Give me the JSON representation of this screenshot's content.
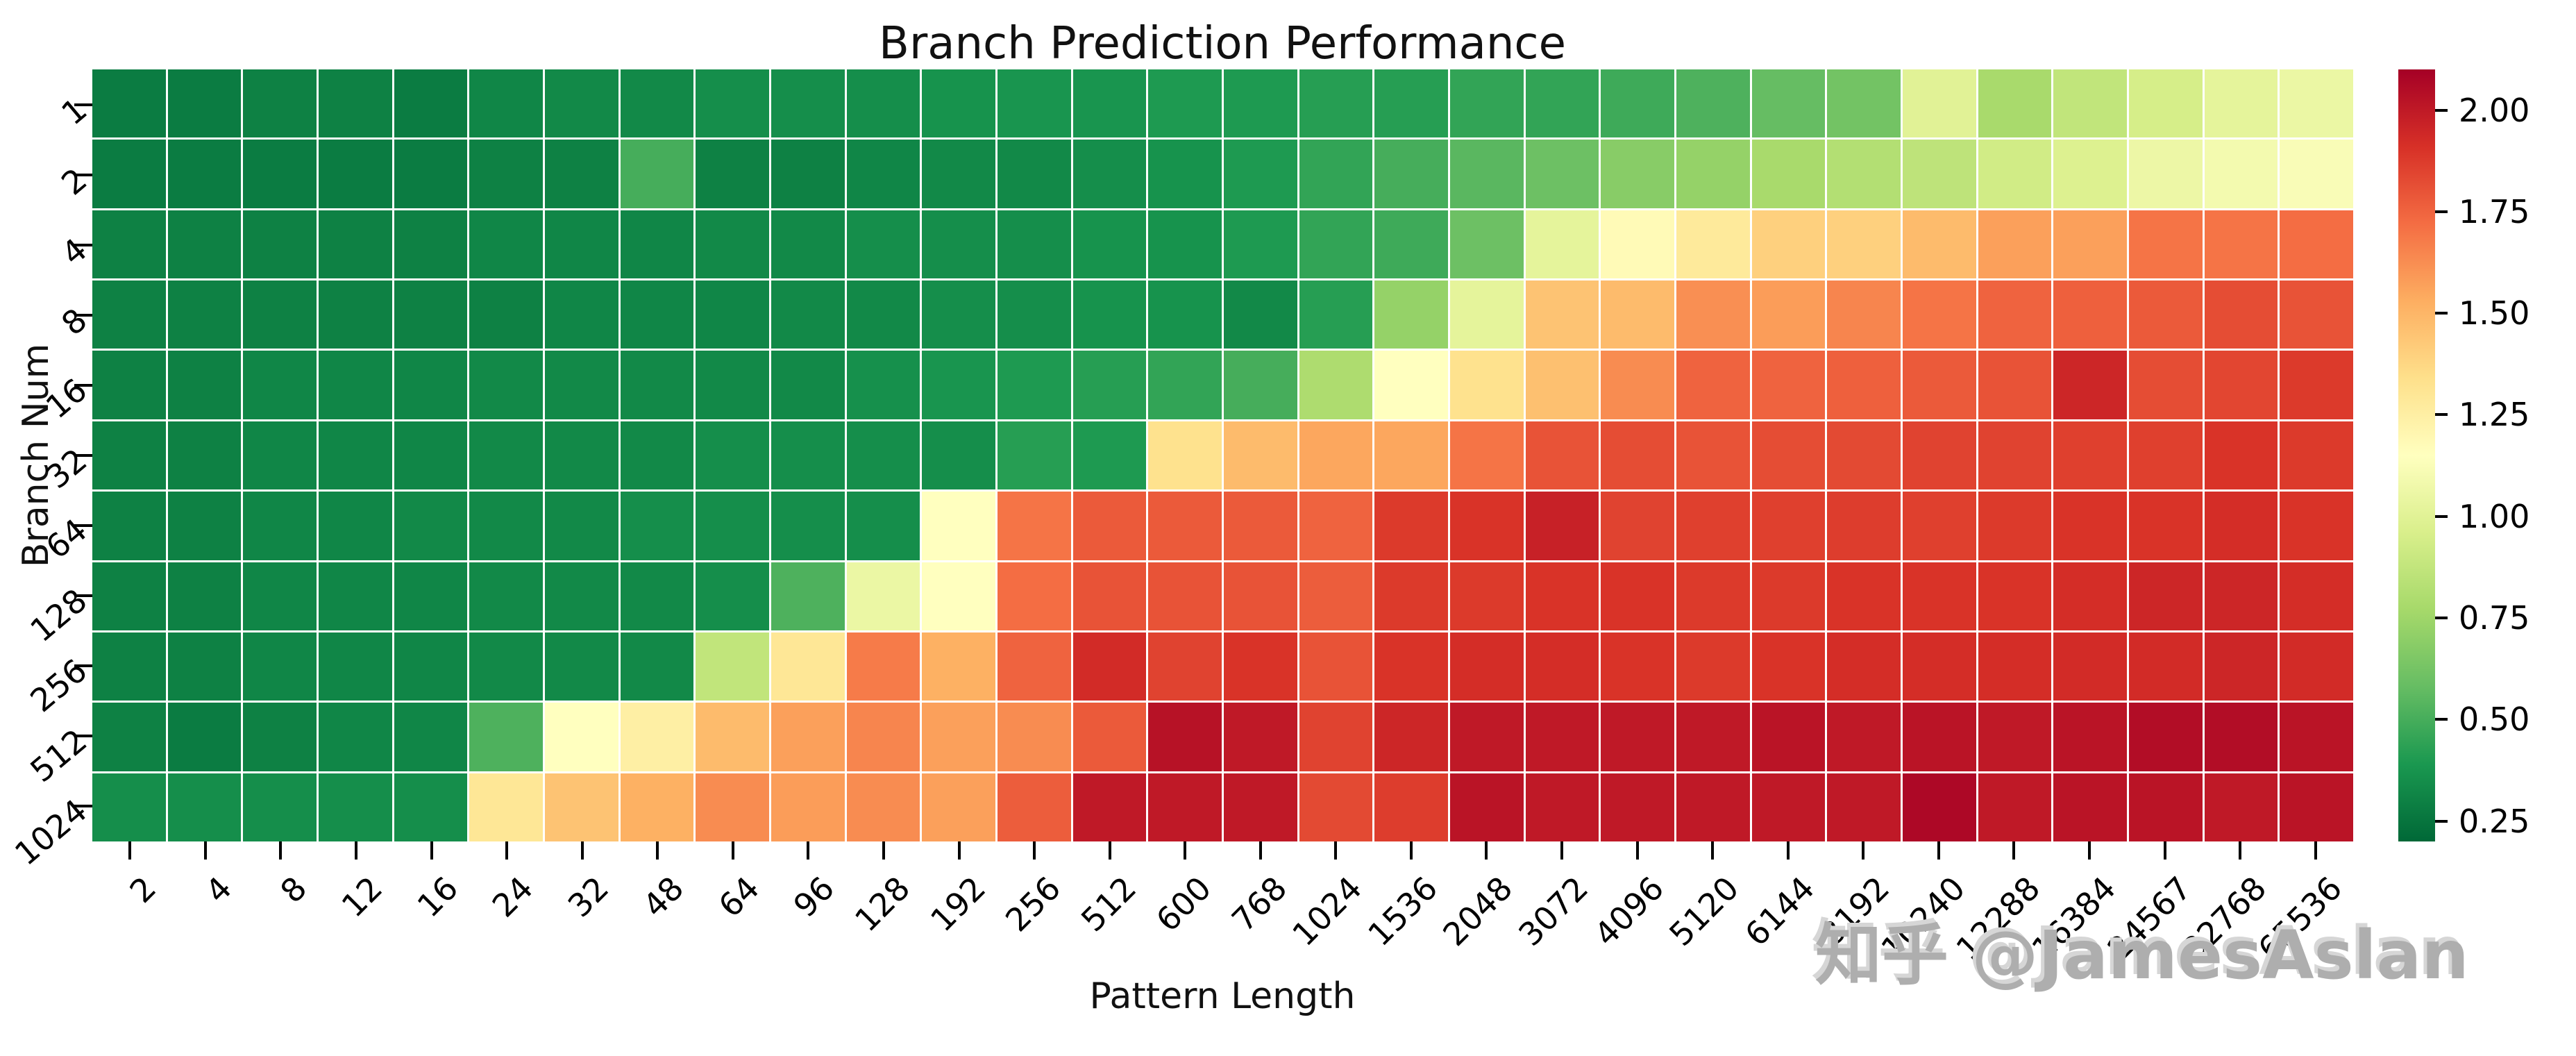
{
  "title": "Branch Prediction Performance",
  "watermark_text": "知乎 @JamesAslan",
  "colors": {
    "background": "#ffffff",
    "text": "#000000",
    "gridline": "#ffffff",
    "watermark": "#aeaeae",
    "cmap_stops": [
      "#006837",
      "#1a9850",
      "#66bd63",
      "#a6d96a",
      "#d9ef8b",
      "#ffffbf",
      "#fee08b",
      "#fdae61",
      "#f46d43",
      "#d73027",
      "#a50026"
    ]
  },
  "chart_data": {
    "type": "heatmap",
    "title": "Branch Prediction Performance",
    "xlabel": "Pattern Length",
    "ylabel": "Branch Num",
    "colormap": "RdYlGn_r",
    "vmin": 0.2,
    "vmax": 2.1,
    "grid": "white cell borders",
    "legend_position": "right-colorbar",
    "x_labels": [
      "2",
      "4",
      "8",
      "12",
      "16",
      "24",
      "32",
      "48",
      "64",
      "96",
      "128",
      "192",
      "256",
      "512",
      "600",
      "768",
      "1024",
      "1536",
      "2048",
      "3072",
      "4096",
      "5120",
      "6144",
      "8192",
      "10240",
      "12288",
      "16384",
      "24567",
      "32768",
      "65536"
    ],
    "y_labels": [
      "1",
      "2",
      "4",
      "8",
      "16",
      "32",
      "64",
      "128",
      "256",
      "512",
      "1024"
    ],
    "colorbar_ticks": [
      0.25,
      0.5,
      0.75,
      1.0,
      1.25,
      1.5,
      1.75,
      2.0
    ],
    "colorbar_tick_labels": [
      "0.25",
      "0.50",
      "0.75",
      "1.00",
      "1.25",
      "1.50",
      "1.75",
      "2.00"
    ],
    "values": [
      [
        0.28,
        0.28,
        0.3,
        0.3,
        0.28,
        0.32,
        0.33,
        0.33,
        0.35,
        0.35,
        0.35,
        0.37,
        0.38,
        0.38,
        0.4,
        0.4,
        0.42,
        0.42,
        0.45,
        0.45,
        0.48,
        0.52,
        0.58,
        0.62,
        1.0,
        0.78,
        0.87,
        0.95,
        1.02,
        1.05
      ],
      [
        0.28,
        0.28,
        0.28,
        0.28,
        0.28,
        0.3,
        0.3,
        0.5,
        0.3,
        0.3,
        0.32,
        0.33,
        0.33,
        0.35,
        0.37,
        0.4,
        0.45,
        0.5,
        0.55,
        0.6,
        0.68,
        0.72,
        0.78,
        0.82,
        0.86,
        0.93,
        0.98,
        1.06,
        1.09,
        1.12
      ],
      [
        0.3,
        0.3,
        0.3,
        0.3,
        0.3,
        0.32,
        0.32,
        0.32,
        0.33,
        0.33,
        0.35,
        0.35,
        0.35,
        0.37,
        0.37,
        0.4,
        0.45,
        0.48,
        0.6,
        1.02,
        1.18,
        1.28,
        1.4,
        1.4,
        1.48,
        1.57,
        1.57,
        1.7,
        1.7,
        1.72
      ],
      [
        0.3,
        0.3,
        0.3,
        0.3,
        0.3,
        0.3,
        0.32,
        0.32,
        0.32,
        0.33,
        0.33,
        0.35,
        0.35,
        0.37,
        0.37,
        0.33,
        0.42,
        0.72,
        1.02,
        1.45,
        1.48,
        1.62,
        1.58,
        1.65,
        1.7,
        1.75,
        1.76,
        1.78,
        1.82,
        1.8
      ],
      [
        0.3,
        0.3,
        0.32,
        0.32,
        0.32,
        0.33,
        0.33,
        0.33,
        0.33,
        0.33,
        0.36,
        0.38,
        0.4,
        0.42,
        0.45,
        0.5,
        0.8,
        1.15,
        1.33,
        1.46,
        1.63,
        1.75,
        1.75,
        1.76,
        1.78,
        1.8,
        1.95,
        1.82,
        1.84,
        1.88
      ],
      [
        0.3,
        0.3,
        0.32,
        0.32,
        0.32,
        0.33,
        0.33,
        0.33,
        0.35,
        0.35,
        0.35,
        0.35,
        0.42,
        0.4,
        1.33,
        1.48,
        1.55,
        1.55,
        1.7,
        1.8,
        1.82,
        1.8,
        1.82,
        1.83,
        1.85,
        1.85,
        1.86,
        1.86,
        1.9,
        1.88
      ],
      [
        0.3,
        0.3,
        0.32,
        0.32,
        0.33,
        0.33,
        0.33,
        0.35,
        0.35,
        0.35,
        0.35,
        1.15,
        1.7,
        1.78,
        1.78,
        1.78,
        1.75,
        1.88,
        1.9,
        1.97,
        1.85,
        1.86,
        1.86,
        1.87,
        1.86,
        1.88,
        1.9,
        1.9,
        1.92,
        1.9
      ],
      [
        0.3,
        0.3,
        0.32,
        0.32,
        0.32,
        0.33,
        0.33,
        0.33,
        0.35,
        0.52,
        1.05,
        1.15,
        1.72,
        1.8,
        1.8,
        1.8,
        1.77,
        1.88,
        1.88,
        1.9,
        1.9,
        1.88,
        1.88,
        1.9,
        1.9,
        1.9,
        1.92,
        1.95,
        1.95,
        1.92
      ],
      [
        0.3,
        0.3,
        0.32,
        0.32,
        0.32,
        0.33,
        0.33,
        0.33,
        0.87,
        1.3,
        1.68,
        1.52,
        1.75,
        1.93,
        1.85,
        1.9,
        1.8,
        1.9,
        1.92,
        1.92,
        1.9,
        1.88,
        1.9,
        1.92,
        1.92,
        1.92,
        1.93,
        1.93,
        1.95,
        1.93
      ],
      [
        0.3,
        0.28,
        0.3,
        0.32,
        0.32,
        0.52,
        1.15,
        1.25,
        1.48,
        1.57,
        1.65,
        1.57,
        1.63,
        1.78,
        2.03,
        2.0,
        1.85,
        1.95,
        2.0,
        2.0,
        2.0,
        2.0,
        2.02,
        2.0,
        2.02,
        2.0,
        2.02,
        2.05,
        2.05,
        2.02
      ],
      [
        0.35,
        0.35,
        0.35,
        0.35,
        0.35,
        1.3,
        1.45,
        1.52,
        1.63,
        1.58,
        1.63,
        1.57,
        1.77,
        2.0,
        2.0,
        2.0,
        1.83,
        1.87,
        2.02,
        2.0,
        2.0,
        2.0,
        2.0,
        2.0,
        2.07,
        2.0,
        2.02,
        2.02,
        2.0,
        2.02
      ]
    ]
  }
}
